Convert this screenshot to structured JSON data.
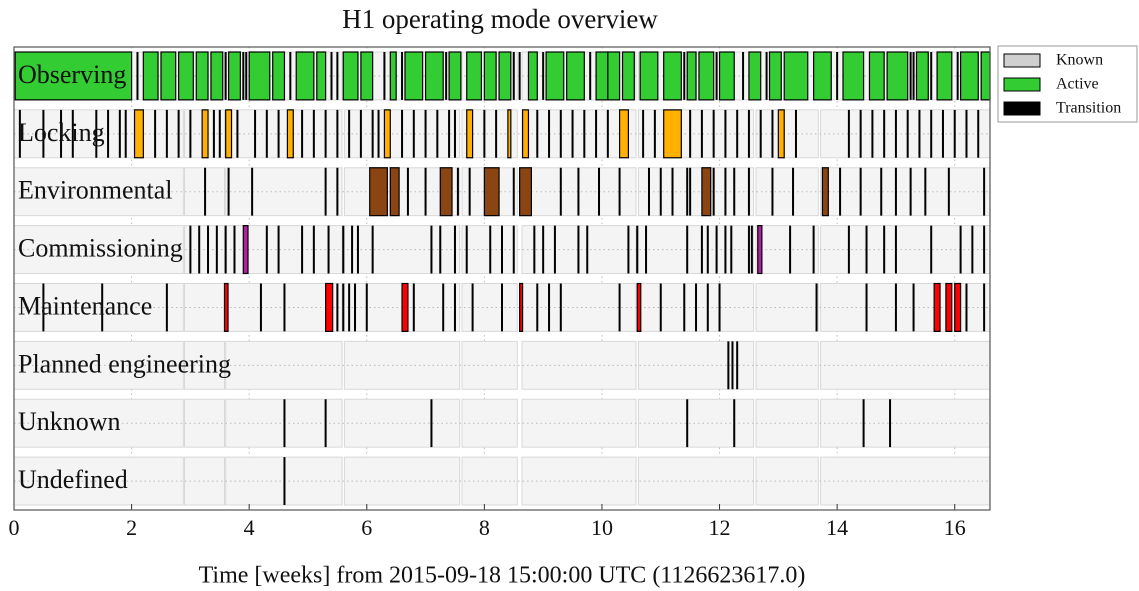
{
  "chart_data": {
    "type": "segments",
    "title": "H1 operating mode overview",
    "xlabel": "Time [weeks] from 2015-09-18 15:00:00 UTC (1126623617.0)",
    "xlim": [
      0,
      16.6
    ],
    "xticks": [
      0,
      2,
      4,
      6,
      8,
      10,
      12,
      14,
      16
    ],
    "grid": true,
    "legend": {
      "corner": "outside-upper-right",
      "entries": [
        {
          "name": "Known",
          "color": "#d0d0d0"
        },
        {
          "name": "Active",
          "color": "#33cc33"
        },
        {
          "name": "Transition",
          "color": "#000000"
        }
      ]
    },
    "known_color": "#f4f4f4",
    "transition_color": "#000000",
    "known": [
      [
        0,
        2.88
      ],
      [
        2.9,
        3.58
      ],
      [
        3.6,
        5.58
      ],
      [
        5.62,
        7.58
      ],
      [
        7.62,
        8.56
      ],
      [
        8.64,
        10.58
      ],
      [
        10.62,
        12.58
      ],
      [
        12.62,
        13.68
      ],
      [
        13.72,
        16.6
      ]
    ],
    "series": [
      {
        "name": "Observing",
        "color": "#33cc33",
        "active": [
          [
            0.02,
            2.0
          ],
          [
            2.2,
            2.45
          ],
          [
            2.5,
            2.75
          ],
          [
            2.8,
            3.05
          ],
          [
            3.1,
            3.3
          ],
          [
            3.35,
            3.55
          ],
          [
            3.65,
            3.85
          ],
          [
            4.0,
            4.35
          ],
          [
            4.4,
            4.6
          ],
          [
            4.8,
            5.1
          ],
          [
            5.15,
            5.3
          ],
          [
            5.6,
            5.85
          ],
          [
            5.9,
            6.1
          ],
          [
            6.4,
            6.5
          ],
          [
            6.65,
            6.95
          ],
          [
            7.0,
            7.3
          ],
          [
            7.4,
            7.6
          ],
          [
            7.7,
            7.95
          ],
          [
            8.0,
            8.2
          ],
          [
            8.25,
            8.45
          ],
          [
            8.75,
            8.9
          ],
          [
            9.05,
            9.35
          ],
          [
            9.4,
            9.7
          ],
          [
            9.9,
            10.1
          ],
          [
            10.1,
            10.3
          ],
          [
            10.35,
            10.55
          ],
          [
            10.65,
            10.95
          ],
          [
            11.05,
            11.35
          ],
          [
            11.45,
            11.6
          ],
          [
            11.65,
            11.9
          ],
          [
            12.0,
            12.25
          ],
          [
            12.5,
            12.7
          ],
          [
            12.85,
            13.05
          ],
          [
            13.1,
            13.5
          ],
          [
            13.6,
            13.9
          ],
          [
            14.1,
            14.45
          ],
          [
            14.55,
            14.8
          ],
          [
            14.85,
            15.2
          ],
          [
            15.35,
            15.55
          ],
          [
            15.7,
            15.95
          ],
          [
            16.1,
            16.4
          ],
          [
            16.45,
            16.6
          ]
        ],
        "transitions": [
          2.1,
          3.6,
          3.9,
          3.95,
          4.7,
          5.4,
          5.5,
          6.3,
          6.6,
          7.35,
          8.5,
          8.6,
          9.0,
          9.8,
          11.4,
          11.95,
          12.4,
          12.8,
          14.0,
          15.25,
          15.3,
          15.6,
          16.05
        ]
      },
      {
        "name": "Locking",
        "color": "#ffb000",
        "active": [
          [
            2.05,
            2.2
          ],
          [
            3.2,
            3.3
          ],
          [
            3.6,
            3.7
          ],
          [
            4.65,
            4.75
          ],
          [
            6.3,
            6.4
          ],
          [
            7.7,
            7.8
          ],
          [
            8.4,
            8.45
          ],
          [
            8.65,
            8.75
          ],
          [
            10.3,
            10.45
          ],
          [
            11.05,
            11.35
          ],
          [
            13.0,
            13.1
          ]
        ],
        "transitions": [
          0.1,
          0.5,
          0.8,
          1.0,
          1.4,
          1.6,
          1.8,
          1.9,
          2.4,
          2.6,
          2.8,
          3.0,
          3.4,
          3.5,
          3.8,
          4.1,
          4.3,
          4.5,
          4.9,
          5.1,
          5.3,
          5.5,
          5.7,
          5.9,
          6.1,
          6.2,
          6.6,
          6.8,
          7.0,
          7.2,
          7.4,
          7.5,
          8.0,
          8.2,
          8.9,
          9.1,
          9.3,
          9.5,
          9.7,
          9.9,
          10.1,
          10.7,
          10.9,
          11.5,
          11.7,
          11.9,
          12.1,
          12.3,
          12.5,
          12.7,
          12.9,
          13.3,
          14.2,
          14.4,
          14.6,
          14.8,
          15.0,
          15.2,
          15.4,
          15.6,
          15.8,
          16.0,
          16.2,
          16.4
        ]
      },
      {
        "name": "Environmental",
        "color": "#8b4513",
        "active": [
          [
            6.05,
            6.35
          ],
          [
            6.4,
            6.55
          ],
          [
            7.25,
            7.45
          ],
          [
            8.0,
            8.25
          ],
          [
            8.6,
            8.8
          ],
          [
            11.7,
            11.85
          ],
          [
            13.75,
            13.85
          ]
        ],
        "transitions": [
          3.25,
          3.65,
          4.05,
          5.3,
          5.5,
          6.7,
          7.0,
          7.55,
          7.75,
          8.5,
          9.3,
          9.6,
          9.95,
          10.3,
          10.8,
          11.0,
          11.2,
          11.45,
          11.5,
          11.9,
          12.1,
          12.25,
          12.5,
          12.9,
          13.25,
          14.05,
          14.4,
          14.75,
          15.0,
          15.25,
          15.5,
          15.9,
          16.5
        ]
      },
      {
        "name": "Commissioning",
        "color": "#b0209f",
        "active": [
          [
            3.9,
            3.98
          ],
          [
            12.65,
            12.72
          ]
        ],
        "transitions": [
          3.0,
          3.15,
          3.3,
          3.45,
          3.6,
          3.75,
          4.3,
          4.5,
          4.9,
          5.1,
          5.35,
          5.6,
          5.75,
          5.85,
          6.1,
          7.1,
          7.25,
          7.5,
          7.7,
          8.1,
          8.3,
          8.5,
          8.85,
          9.0,
          9.2,
          9.6,
          9.75,
          10.45,
          10.6,
          10.75,
          11.45,
          11.7,
          11.8,
          11.95,
          12.1,
          12.2,
          12.5,
          12.55,
          13.2,
          13.6,
          14.2,
          14.5,
          14.8,
          15.0,
          15.6,
          16.1,
          16.3,
          16.5
        ]
      },
      {
        "name": "Maintenance",
        "color": "#ff0000",
        "active": [
          [
            5.3,
            5.42
          ],
          [
            3.58,
            3.64
          ],
          [
            6.6,
            6.7
          ],
          [
            8.6,
            8.65
          ],
          [
            10.6,
            10.66
          ],
          [
            15.65,
            15.75
          ],
          [
            15.85,
            15.95
          ],
          [
            16.0,
            16.1
          ]
        ],
        "transitions": [
          0.5,
          1.5,
          2.6,
          4.2,
          4.6,
          5.5,
          5.6,
          5.7,
          5.8,
          6.0,
          6.8,
          7.3,
          7.5,
          7.8,
          8.3,
          8.9,
          9.1,
          9.3,
          10.3,
          11.0,
          11.4,
          11.6,
          11.8,
          12.0,
          13.65,
          14.5,
          15.0,
          15.3,
          16.2,
          16.5
        ]
      },
      {
        "name": "Planned engineering",
        "color": "#333333",
        "active": [],
        "transitions": [
          12.15,
          12.22,
          12.3
        ]
      },
      {
        "name": "Unknown",
        "color": "#333333",
        "active": [],
        "transitions": [
          4.6,
          5.3,
          7.1,
          11.45,
          12.25,
          14.45,
          14.9
        ]
      },
      {
        "name": "Undefined",
        "color": "#333333",
        "active": [],
        "transitions": [
          4.6
        ]
      }
    ]
  }
}
